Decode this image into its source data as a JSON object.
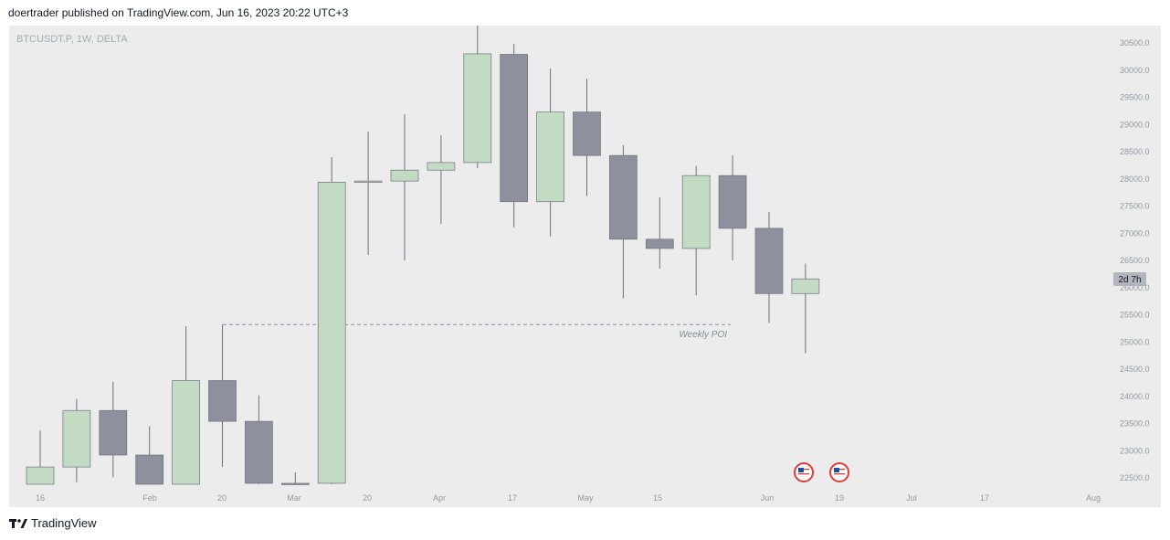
{
  "header": {
    "published_line": "doertrader published on TradingView.com, Jun 16, 2023 20:22 UTC+3"
  },
  "footer": {
    "brand": "TradingView"
  },
  "chart_data": {
    "type": "candlestick",
    "symbol_label": "BTCUSDT.P, 1W, DELTA",
    "ylim": [
      22300,
      30850
    ],
    "y_ticks": [
      22500,
      23000,
      23500,
      24000,
      24500,
      25000,
      25500,
      26000,
      26500,
      27000,
      27500,
      28000,
      28500,
      29000,
      29500,
      30000,
      30500
    ],
    "x_tick_labels": [
      "16",
      "Feb",
      "20",
      "Mar",
      "20",
      "Apr",
      "17",
      "May",
      "15",
      "Jun",
      "19",
      "Jul",
      "17",
      "Aug"
    ],
    "candles": [
      {
        "o": 22380,
        "h": 23370,
        "l": 22300,
        "c": 22700
      },
      {
        "o": 22700,
        "h": 23950,
        "l": 22420,
        "c": 23740
      },
      {
        "o": 23740,
        "h": 24270,
        "l": 22510,
        "c": 22920
      },
      {
        "o": 22920,
        "h": 23450,
        "l": 22300,
        "c": 22360
      },
      {
        "o": 22360,
        "h": 25290,
        "l": 22300,
        "c": 24290
      },
      {
        "o": 24290,
        "h": 25320,
        "l": 22700,
        "c": 23540
      },
      {
        "o": 23540,
        "h": 24020,
        "l": 22380,
        "c": 22400
      },
      {
        "o": 22400,
        "h": 22600,
        "l": 22300,
        "c": 22370
      },
      {
        "o": 22400,
        "h": 28400,
        "l": 22300,
        "c": 27940
      },
      {
        "o": 27940,
        "h": 28870,
        "l": 26600,
        "c": 27960
      },
      {
        "o": 27960,
        "h": 29190,
        "l": 26500,
        "c": 28160
      },
      {
        "o": 28160,
        "h": 28800,
        "l": 27170,
        "c": 28300
      },
      {
        "o": 28300,
        "h": 30820,
        "l": 28200,
        "c": 30300
      },
      {
        "o": 30290,
        "h": 30480,
        "l": 27110,
        "c": 27580
      },
      {
        "o": 27580,
        "h": 30030,
        "l": 26940,
        "c": 29230
      },
      {
        "o": 29230,
        "h": 29840,
        "l": 27680,
        "c": 28430
      },
      {
        "o": 28430,
        "h": 28620,
        "l": 25800,
        "c": 26890
      },
      {
        "o": 26890,
        "h": 27660,
        "l": 26350,
        "c": 26720
      },
      {
        "o": 26720,
        "h": 28240,
        "l": 25860,
        "c": 28060
      },
      {
        "o": 28060,
        "h": 28430,
        "l": 26500,
        "c": 27090
      },
      {
        "o": 27090,
        "h": 27390,
        "l": 25350,
        "c": 25890
      },
      {
        "o": 25890,
        "h": 26440,
        "l": 24790,
        "c": 26160
      }
    ],
    "annotations": [
      {
        "type": "horizontal-level",
        "price": 25320,
        "label": "Weekly POI"
      }
    ],
    "countdown_badge": "2d 7h",
    "colors": {
      "bull_fill": "#c3dac3",
      "bear_fill": "#8e909e",
      "wick": "#6f717d",
      "background": "#ececec",
      "axis_text": "#9598a1"
    },
    "event_markers": [
      "us-flag-icon",
      "us-flag-icon"
    ]
  }
}
